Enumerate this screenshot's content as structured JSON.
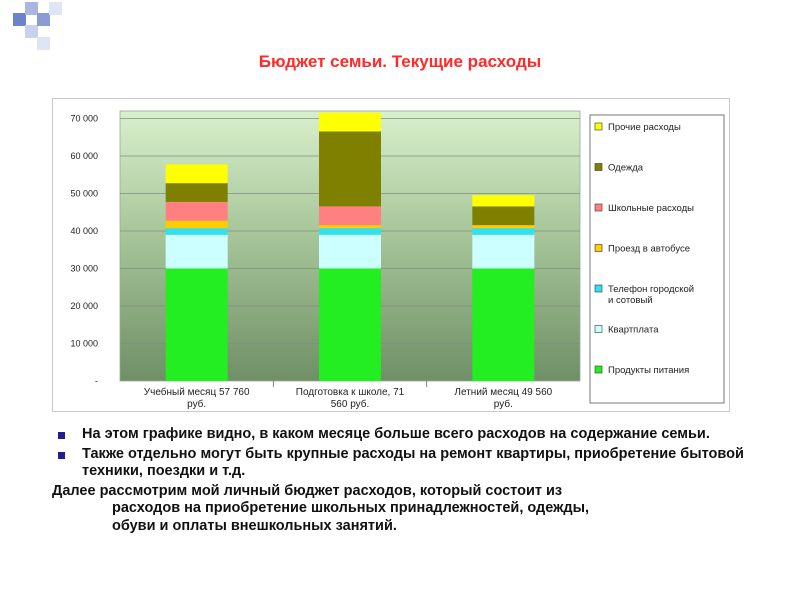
{
  "title": "Бюджет семьи. Текущие расходы",
  "colors": {
    "title": "#ff2a2a",
    "deco_square": "#6e82c8",
    "bullet": "#1f1f8f"
  },
  "chart_data": {
    "type": "bar",
    "stacked": true,
    "categories": [
      "Учебный месяц  57 760 руб.",
      "Подготовка к школе, 71 560 руб.",
      "Летний месяц  49 560 руб."
    ],
    "category_lines": [
      [
        "Учебный месяц  57 760",
        "руб."
      ],
      [
        "Подготовка к школе, 71",
        "560 руб."
      ],
      [
        "Летний месяц  49 560",
        "руб."
      ]
    ],
    "series": [
      {
        "name": "Продукты питания",
        "color": "#22ee22",
        "values": [
          30000,
          30000,
          30000
        ]
      },
      {
        "name": "Квартплата",
        "color": "#ccffff",
        "values": [
          9000,
          9000,
          9000
        ]
      },
      {
        "name": "Телефон городской и сотовый",
        "color": "#33e0ee",
        "values": [
          1760,
          1760,
          1760
        ]
      },
      {
        "name": "Проезд в автобусе",
        "color": "#ffcc00",
        "values": [
          2000,
          800,
          800
        ]
      },
      {
        "name": "Школьные расходы",
        "color": "#ff8080",
        "values": [
          5000,
          5000,
          0
        ]
      },
      {
        "name": "Одежда",
        "color": "#808000",
        "values": [
          5000,
          20000,
          5000
        ]
      },
      {
        "name": "Прочие расходы",
        "color": "#ffff00",
        "values": [
          5000,
          5000,
          3000
        ]
      }
    ],
    "legend_lines": {
      "Телефон городской и сотовый": [
        "Телефон городской",
        "и сотовый"
      ]
    },
    "yticks": [
      0,
      10000,
      20000,
      30000,
      40000,
      50000,
      60000,
      70000
    ],
    "ytick_labels": [
      "-",
      "10 000",
      "20 000",
      "30 000",
      "40 000",
      "50 000",
      "60 000",
      "70 000"
    ],
    "ylim": [
      0,
      72000
    ],
    "xlabel": "",
    "ylabel": "",
    "grid": true,
    "legend_position": "right",
    "plot_background": "gradient light-green to gray-green"
  },
  "text": {
    "bullets": [
      "На этом графике видно, в каком месяце больше всего расходов на содержание семьи.",
      "Также отдельно могут быть крупные расходы на ремонт квартиры, приобретение бытовой техники, поездки и т.д."
    ],
    "paragraph": {
      "line1": "Далее рассмотрим мой личный бюджет расходов,  который состоит из",
      "line2": "расходов на приобретение школьных принадлежностей, одежды,",
      "line3": "обуви и оплаты внешкольных занятий."
    }
  }
}
